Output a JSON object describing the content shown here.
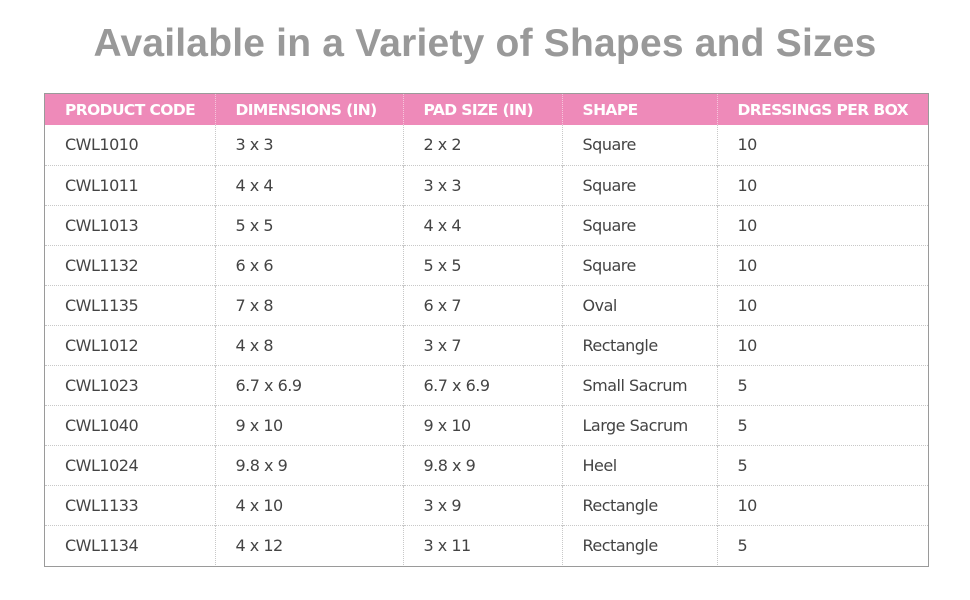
{
  "title": "Available in a Variety of Shapes and Sizes",
  "table": {
    "headers": [
      "PRODUCT CODE",
      "DIMENSIONS (IN)",
      "PAD SIZE (IN)",
      "SHAPE",
      "DRESSINGS PER BOX"
    ],
    "rows": [
      [
        "CWL1010",
        "3 x 3",
        "2 x 2",
        "Square",
        "10"
      ],
      [
        "CWL1011",
        "4 x 4",
        "3 x 3",
        "Square",
        "10"
      ],
      [
        "CWL1013",
        "5 x 5",
        "4 x 4",
        "Square",
        "10"
      ],
      [
        "CWL1132",
        "6 x 6",
        "5 x 5",
        "Square",
        "10"
      ],
      [
        "CWL1135",
        "7 x 8",
        "6 x 7",
        "Oval",
        "10"
      ],
      [
        "CWL1012",
        "4 x 8",
        "3 x 7",
        "Rectangle",
        "10"
      ],
      [
        "CWL1023",
        "6.7 x 6.9",
        "6.7 x 6.9",
        "Small Sacrum",
        "5"
      ],
      [
        "CWL1040",
        "9 x 10",
        "9 x 10",
        "Large Sacrum",
        "5"
      ],
      [
        "CWL1024",
        "9.8 x 9",
        "9.8 x 9",
        "Heel",
        "5"
      ],
      [
        "CWL1133",
        "4 x 10",
        "3 x 9",
        "Rectangle",
        "10"
      ],
      [
        "CWL1134",
        "4 x 12",
        "3 x 11",
        "Rectangle",
        "5"
      ]
    ]
  },
  "colors": {
    "header_background": "#ee8ab9",
    "header_text": "#ffffff",
    "title_text": "#999999",
    "cell_text": "#444444"
  }
}
